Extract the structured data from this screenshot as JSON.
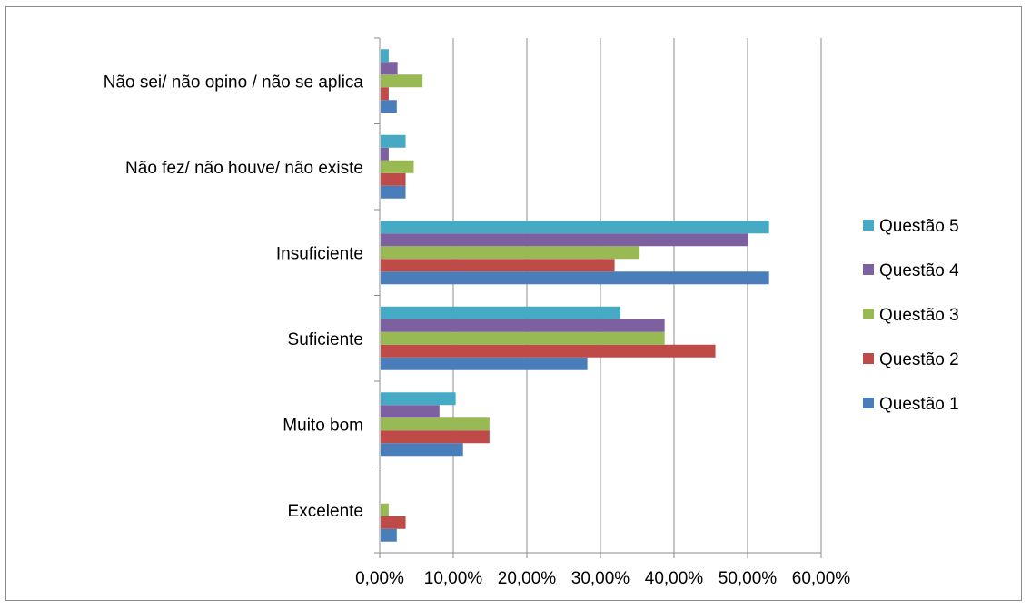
{
  "chart_data": {
    "type": "bar",
    "orientation": "horizontal",
    "categories": [
      "Excelente",
      "Muito bom",
      "Suficiente",
      "Insuficiente",
      "Não fez/ não houve/ não existe",
      "Não sei/ não opino / não se aplica"
    ],
    "series": [
      {
        "name": "Questão 1",
        "color": "#4a7ebb",
        "values": [
          2.2,
          11.2,
          28.1,
          52.8,
          3.4,
          2.2
        ]
      },
      {
        "name": "Questão 2",
        "color": "#be4b48",
        "values": [
          3.4,
          14.8,
          45.5,
          31.8,
          3.4,
          1.1
        ]
      },
      {
        "name": "Questão 3",
        "color": "#98b954",
        "values": [
          1.1,
          14.8,
          38.6,
          35.2,
          4.5,
          5.7
        ]
      },
      {
        "name": "Questão 4",
        "color": "#7d60a0",
        "values": [
          0,
          8.0,
          38.6,
          50.0,
          1.1,
          2.3
        ]
      },
      {
        "name": "Questão 5",
        "color": "#46aac5",
        "values": [
          0,
          10.2,
          32.6,
          52.8,
          3.4,
          1.1
        ]
      }
    ],
    "x_ticks": [
      "0,00%",
      "10,00%",
      "20,00%",
      "30,00%",
      "40,00%",
      "50,00%",
      "60,00%"
    ],
    "xlim": [
      0,
      60
    ],
    "grid": "vertical",
    "legend_position": "right",
    "legend_order": [
      "Questão 5",
      "Questão 4",
      "Questão 3",
      "Questão 2",
      "Questão 1"
    ]
  }
}
